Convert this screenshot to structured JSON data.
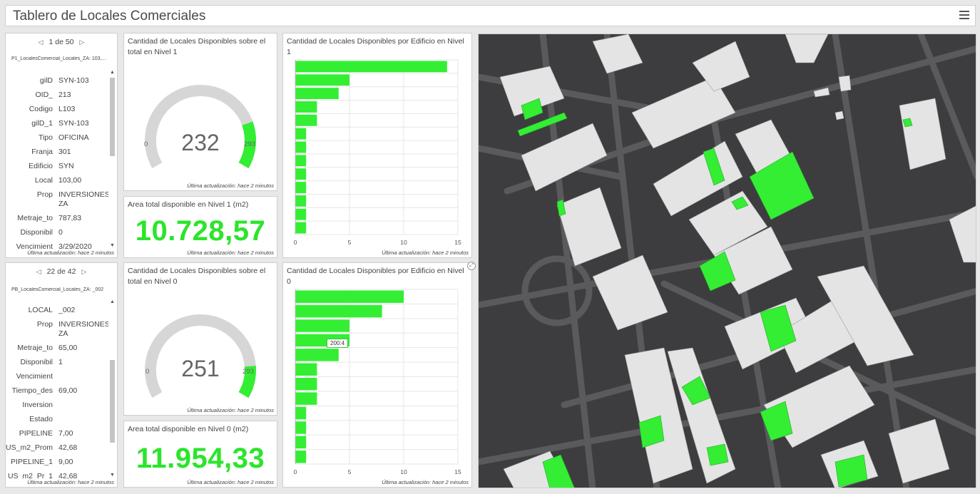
{
  "header": {
    "title": "Tablero de Locales Comerciales"
  },
  "footnote": "Última actualización: hace 2 minutos",
  "details1": {
    "nav": "1 de 50",
    "layer": "P1_LocalesComercial_Locales_ZA: 103,...",
    "fields": [
      {
        "k": "gilD",
        "v": "SYN-103"
      },
      {
        "k": "OID_",
        "v": "213"
      },
      {
        "k": "Codigo",
        "v": "L103"
      },
      {
        "k": "gilD_1",
        "v": "SYN-103"
      },
      {
        "k": "Tipo",
        "v": "OFICINA"
      },
      {
        "k": "Franja",
        "v": "301"
      },
      {
        "k": "Edificio",
        "v": "SYN"
      },
      {
        "k": "Local",
        "v": "103,00"
      },
      {
        "k": "Prop",
        "v": "INVERSIONES ZA"
      },
      {
        "k": "Metraje_to",
        "v": "787,83"
      },
      {
        "k": "Disponibil",
        "v": "0"
      },
      {
        "k": "Vencimient",
        "v": "3/29/2020"
      }
    ]
  },
  "details0": {
    "nav": "22 de 42",
    "layer": "PB_LocalesComercial_Locales_ZA: _002",
    "fields": [
      {
        "k": "LOCAL",
        "v": "_002"
      },
      {
        "k": "Prop",
        "v": "INVERSIONES ZA"
      },
      {
        "k": "Metraje_to",
        "v": "65,00"
      },
      {
        "k": "Disponibil",
        "v": "1"
      },
      {
        "k": "Vencimient",
        "v": ""
      },
      {
        "k": "Tiempo_des",
        "v": "69,00"
      },
      {
        "k": "Inversion",
        "v": ""
      },
      {
        "k": "Estado",
        "v": ""
      },
      {
        "k": "PIPELINE",
        "v": "7,00"
      },
      {
        "k": "US_m2_Prom",
        "v": "42,68"
      },
      {
        "k": "PIPELINE_1",
        "v": "9,00"
      },
      {
        "k": "US_m2_Pr_1",
        "v": "42,68"
      }
    ]
  },
  "gauge1": {
    "title": "Cantidad de Locales Disponibles sobre el total en Nivel 1",
    "value": "232",
    "min": "0",
    "max": "293",
    "fraction": 0.208,
    "color": "#33ee33"
  },
  "gauge0": {
    "title": "Cantidad de Locales Disponibles sobre el total en Nivel 0",
    "value": "251",
    "min": "0",
    "max": "293",
    "fraction": 0.143,
    "color": "#33ee33"
  },
  "area1": {
    "title": "Area total disponible en Nivel 1 (m2)",
    "value": "10.728,57"
  },
  "area0": {
    "title": "Area total disponible en Nivel 0 (m2)",
    "value": "11.954,33"
  },
  "chart_data": [
    {
      "type": "bar",
      "title": "Cantidad de Locales Disponibles por Edificio en Nivel 1",
      "orientation": "horizontal",
      "values": [
        14,
        5,
        4,
        2,
        2,
        1,
        1,
        1,
        1,
        1,
        1,
        1,
        1
      ],
      "xlim": [
        0,
        15
      ],
      "ticks": [
        "0",
        "5",
        "10",
        "15"
      ],
      "color": "#33ee33",
      "grid": true
    },
    {
      "type": "bar",
      "title": "Cantidad de Locales Disponibles por Edificio en Nivel 0",
      "orientation": "horizontal",
      "values": [
        10,
        8,
        5,
        5,
        4,
        2,
        2,
        2,
        1,
        1,
        1,
        1
      ],
      "xlim": [
        0,
        15
      ],
      "ticks": [
        "0",
        "5",
        "10",
        "15"
      ],
      "tooltip": "200:4",
      "color": "#33ee33",
      "grid": true
    }
  ],
  "map": {
    "background": "#3d3d40",
    "road": "#5a5a5d",
    "building": "#e4e4e4",
    "highlight": "#33ee33"
  }
}
